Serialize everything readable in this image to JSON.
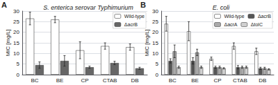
{
  "chart_data": [
    {
      "type": "bar",
      "title": "S. enterica serovar Typhimurium",
      "annotation": "A",
      "categories": [
        "BC",
        "BE",
        "CP",
        "CTAB",
        "DB"
      ],
      "series": [
        {
          "name": "Wild-type",
          "color": "#ffffff",
          "values": [
            26.5,
            26.0,
            11.5,
            13.5,
            13.0
          ],
          "errors": [
            3.0,
            1.5,
            4.0,
            1.5,
            1.5
          ]
        },
        {
          "name": "ΔacrB",
          "color": "#666666",
          "values": [
            4.5,
            6.5,
            3.5,
            5.5,
            3.0
          ],
          "errors": [
            1.5,
            2.5,
            0.5,
            0.8,
            0.5
          ]
        }
      ],
      "ylabel": "MIC [mg/L]",
      "ylim": [
        0,
        30
      ],
      "yticks": [
        0,
        5,
        10,
        15,
        20,
        25,
        30
      ],
      "grid": true,
      "legend": "upper right"
    },
    {
      "type": "bar",
      "title": "E. coli",
      "annotation": "B",
      "categories": [
        "BC",
        "BE",
        "CP",
        "CTAB",
        "DB"
      ],
      "series": [
        {
          "name": "Wild-type",
          "color": "#ffffff",
          "values": [
            24.0,
            20.5,
            7.5,
            13.5,
            11.0
          ],
          "errors": [
            3.5,
            4.5,
            0.8,
            1.5,
            1.5
          ]
        },
        {
          "name": "ΔacrB",
          "color": "#555555",
          "values": [
            6.5,
            6.5,
            3.5,
            3.5,
            3.0
          ],
          "errors": [
            1.0,
            1.5,
            0.5,
            0.8,
            0.5
          ]
        },
        {
          "name": "ΔacrA",
          "color": "#aaaaaa",
          "values": [
            11.0,
            10.5,
            3.5,
            3.5,
            3.0
          ],
          "errors": [
            3.0,
            1.5,
            0.5,
            0.5,
            0.5
          ]
        },
        {
          "name": "ΔtolC",
          "color": "#d0d0d0",
          "values": [
            3.5,
            3.5,
            3.0,
            3.5,
            2.5
          ],
          "errors": [
            0.5,
            0.5,
            0.3,
            0.5,
            0.3
          ]
        }
      ],
      "ylabel": "MIC [mg/L]",
      "ylim": [
        0,
        30
      ],
      "yticks": [
        0,
        5,
        10,
        15,
        20,
        25,
        30
      ],
      "grid": true,
      "legend": "upper right"
    }
  ]
}
